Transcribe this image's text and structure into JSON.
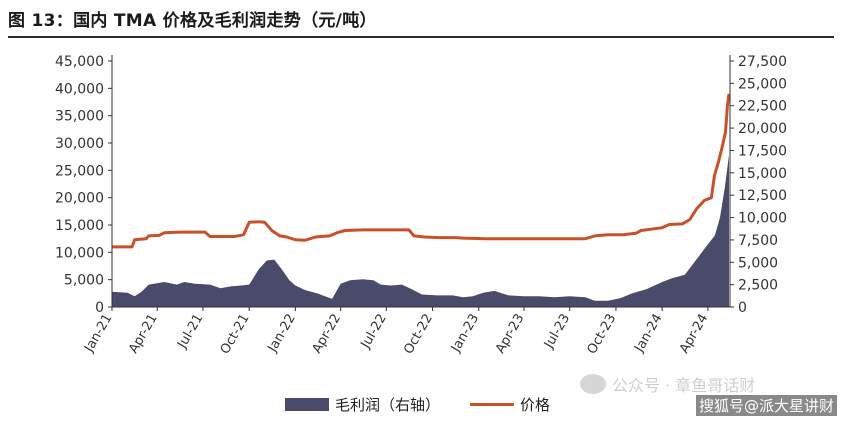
{
  "figure": {
    "title": "图 13：国内 TMA 价格及毛利润走势（元/吨）"
  },
  "watermarks": {
    "primary": "公众号 · 章鱼哥话财",
    "secondary": "搜狐号@派大星讲财"
  },
  "chart_data": {
    "type": "line+area",
    "title": "",
    "x_tick_labels": [
      "Jan-21",
      "Apr-21",
      "Jul-21",
      "Oct-21",
      "Jan-22",
      "Apr-22",
      "Jul-22",
      "Oct-22",
      "Jan-23",
      "Apr-23",
      "Jul-23",
      "Oct-23",
      "Jan-24",
      "Apr-24"
    ],
    "x_range_months": [
      "2021-01",
      "2024-05"
    ],
    "left_axis": {
      "min": 0,
      "max": 45000,
      "ticks": [
        "0",
        "5,000",
        "10,000",
        "15,000",
        "20,000",
        "25,000",
        "30,000",
        "35,000",
        "40,000",
        "45,000"
      ]
    },
    "right_axis": {
      "min": 0,
      "max": 27500,
      "ticks": [
        "0",
        "2,500",
        "5,000",
        "7,500",
        "10,000",
        "12,500",
        "15,000",
        "17,500",
        "20,000",
        "22,500",
        "25,000",
        "27,500"
      ]
    },
    "legend": [
      "毛利润（右轴）",
      "价格"
    ],
    "colors": {
      "price": "#c8512a",
      "profit": "#4a4a6a",
      "axis": "#333333"
    },
    "series": [
      {
        "name": "价格",
        "axis": "left",
        "style": "line",
        "points": [
          [
            "2021-01-01",
            11000
          ],
          [
            "2021-02-10",
            11000
          ],
          [
            "2021-02-15",
            12300
          ],
          [
            "2021-03-10",
            12500
          ],
          [
            "2021-03-15",
            13000
          ],
          [
            "2021-04-05",
            13100
          ],
          [
            "2021-04-15",
            13600
          ],
          [
            "2021-05-15",
            13700
          ],
          [
            "2021-06-15",
            13700
          ],
          [
            "2021-07-05",
            13700
          ],
          [
            "2021-07-15",
            12900
          ],
          [
            "2021-08-15",
            12900
          ],
          [
            "2021-09-01",
            12900
          ],
          [
            "2021-09-20",
            13200
          ],
          [
            "2021-10-01",
            15500
          ],
          [
            "2021-10-20",
            15600
          ],
          [
            "2021-11-01",
            15500
          ],
          [
            "2021-11-15",
            14000
          ],
          [
            "2021-12-01",
            13000
          ],
          [
            "2021-12-15",
            12800
          ],
          [
            "2022-01-01",
            12300
          ],
          [
            "2022-01-20",
            12200
          ],
          [
            "2022-02-10",
            12800
          ],
          [
            "2022-03-10",
            13000
          ],
          [
            "2022-03-25",
            13600
          ],
          [
            "2022-04-10",
            14000
          ],
          [
            "2022-05-15",
            14100
          ],
          [
            "2022-06-15",
            14100
          ],
          [
            "2022-07-15",
            14100
          ],
          [
            "2022-08-15",
            14100
          ],
          [
            "2022-08-25",
            13000
          ],
          [
            "2022-09-15",
            12800
          ],
          [
            "2022-10-15",
            12700
          ],
          [
            "2022-11-15",
            12700
          ],
          [
            "2022-12-01",
            12600
          ],
          [
            "2023-01-15",
            12500
          ],
          [
            "2023-03-01",
            12500
          ],
          [
            "2023-05-01",
            12500
          ],
          [
            "2023-07-01",
            12500
          ],
          [
            "2023-08-01",
            12500
          ],
          [
            "2023-08-20",
            13000
          ],
          [
            "2023-09-15",
            13200
          ],
          [
            "2023-10-15",
            13200
          ],
          [
            "2023-11-10",
            13500
          ],
          [
            "2023-11-20",
            14000
          ],
          [
            "2023-12-15",
            14300
          ],
          [
            "2024-01-01",
            14500
          ],
          [
            "2024-01-15",
            15100
          ],
          [
            "2024-02-10",
            15200
          ],
          [
            "2024-02-25",
            16000
          ],
          [
            "2024-03-10",
            18000
          ],
          [
            "2024-03-25",
            19500
          ],
          [
            "2024-04-08",
            20000
          ],
          [
            "2024-04-14",
            24000
          ],
          [
            "2024-04-22",
            26500
          ],
          [
            "2024-04-30",
            29500
          ],
          [
            "2024-05-06",
            32000
          ],
          [
            "2024-05-10",
            37000
          ],
          [
            "2024-05-13",
            39000
          ]
        ]
      },
      {
        "name": "毛利润（右轴）",
        "axis": "right",
        "style": "area",
        "points": [
          [
            "2021-01-01",
            1700
          ],
          [
            "2021-02-01",
            1600
          ],
          [
            "2021-02-15",
            1200
          ],
          [
            "2021-03-01",
            1700
          ],
          [
            "2021-03-15",
            2500
          ],
          [
            "2021-04-15",
            2800
          ],
          [
            "2021-05-10",
            2500
          ],
          [
            "2021-05-25",
            2800
          ],
          [
            "2021-06-15",
            2600
          ],
          [
            "2021-07-15",
            2500
          ],
          [
            "2021-08-05",
            2100
          ],
          [
            "2021-08-25",
            2300
          ],
          [
            "2021-09-15",
            2400
          ],
          [
            "2021-10-01",
            2500
          ],
          [
            "2021-10-20",
            4200
          ],
          [
            "2021-11-05",
            5200
          ],
          [
            "2021-11-20",
            5300
          ],
          [
            "2021-12-05",
            4200
          ],
          [
            "2021-12-20",
            3000
          ],
          [
            "2022-01-01",
            2400
          ],
          [
            "2022-01-20",
            1900
          ],
          [
            "2022-02-15",
            1500
          ],
          [
            "2022-03-01",
            1200
          ],
          [
            "2022-03-15",
            900
          ],
          [
            "2022-04-01",
            2600
          ],
          [
            "2022-04-20",
            3000
          ],
          [
            "2022-05-15",
            3100
          ],
          [
            "2022-06-05",
            3000
          ],
          [
            "2022-06-20",
            2500
          ],
          [
            "2022-07-10",
            2400
          ],
          [
            "2022-08-01",
            2500
          ],
          [
            "2022-08-20",
            2000
          ],
          [
            "2022-09-10",
            1400
          ],
          [
            "2022-10-10",
            1300
          ],
          [
            "2022-11-10",
            1300
          ],
          [
            "2022-12-01",
            1100
          ],
          [
            "2022-12-20",
            1200
          ],
          [
            "2023-01-10",
            1600
          ],
          [
            "2023-02-01",
            1800
          ],
          [
            "2023-03-01",
            1300
          ],
          [
            "2023-04-01",
            1200
          ],
          [
            "2023-05-01",
            1200
          ],
          [
            "2023-06-01",
            1100
          ],
          [
            "2023-07-01",
            1200
          ],
          [
            "2023-08-01",
            1100
          ],
          [
            "2023-08-20",
            700
          ],
          [
            "2023-09-15",
            700
          ],
          [
            "2023-10-10",
            1000
          ],
          [
            "2023-11-01",
            1500
          ],
          [
            "2023-12-01",
            2000
          ],
          [
            "2024-01-01",
            2800
          ],
          [
            "2024-01-20",
            3200
          ],
          [
            "2024-02-15",
            3600
          ],
          [
            "2024-03-01",
            4700
          ],
          [
            "2024-03-25",
            6500
          ],
          [
            "2024-04-15",
            8000
          ],
          [
            "2024-04-25",
            10000
          ],
          [
            "2024-05-05",
            13500
          ],
          [
            "2024-05-13",
            17000
          ]
        ]
      }
    ]
  }
}
